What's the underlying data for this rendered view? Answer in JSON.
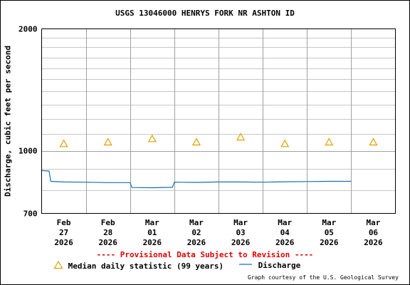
{
  "chart_data": {
    "type": "line",
    "title": "USGS 13046000 HENRYS FORK NR ASHTON ID",
    "xlabel": "",
    "ylabel": "Discharge, cubic feet per second",
    "y_scale": "log",
    "ylim": [
      700,
      2000
    ],
    "yticks": [
      "700",
      "1000",
      "2000"
    ],
    "xlim": [
      "2026-02-27T00:00",
      "2026-03-07T00:00"
    ],
    "x_tick_labels": [
      [
        "Feb",
        "27",
        "2026"
      ],
      [
        "Feb",
        "28",
        "2026"
      ],
      [
        "Mar",
        "01",
        "2026"
      ],
      [
        "Mar",
        "02",
        "2026"
      ],
      [
        "Mar",
        "03",
        "2026"
      ],
      [
        "Mar",
        "04",
        "2026"
      ],
      [
        "Mar",
        "05",
        "2026"
      ],
      [
        "Mar",
        "06",
        "2026"
      ]
    ],
    "grid": true,
    "series": [
      {
        "name": "Discharge",
        "color": "#1a6fb0",
        "points": [
          [
            "2026-02-26T16:00",
            893
          ],
          [
            "2026-02-27T04:00",
            891
          ],
          [
            "2026-02-27T05:00",
            840
          ],
          [
            "2026-02-27T12:00",
            837
          ],
          [
            "2026-02-28T00:00",
            836
          ],
          [
            "2026-02-28T12:00",
            834
          ],
          [
            "2026-03-01T00:00",
            834
          ],
          [
            "2026-03-01T01:00",
            811
          ],
          [
            "2026-03-01T12:00",
            810
          ],
          [
            "2026-03-01T23:00",
            812
          ],
          [
            "2026-03-02T00:00",
            836
          ],
          [
            "2026-03-02T12:00",
            835
          ],
          [
            "2026-03-03T00:00",
            837
          ],
          [
            "2026-03-03T12:00",
            837
          ],
          [
            "2026-03-04T00:00",
            836
          ],
          [
            "2026-03-04T12:00",
            838
          ],
          [
            "2026-03-05T00:00",
            839
          ],
          [
            "2026-03-05T12:00",
            840
          ],
          [
            "2026-03-06T00:00",
            840
          ]
        ]
      },
      {
        "name": "Median daily statistic (99 years)",
        "color": "#e0a000",
        "marker": "triangle",
        "points": [
          [
            "2026-02-27T12:00",
            1040
          ],
          [
            "2026-02-28T12:00",
            1050
          ],
          [
            "2026-03-01T12:00",
            1070
          ],
          [
            "2026-03-02T12:00",
            1050
          ],
          [
            "2026-03-03T12:00",
            1080
          ],
          [
            "2026-03-04T12:00",
            1040
          ],
          [
            "2026-03-05T12:00",
            1050
          ],
          [
            "2026-03-06T12:00",
            1050
          ]
        ]
      }
    ],
    "legend_position": "bottom",
    "annotations": [
      "---- Provisional Data Subject to Revision ----"
    ],
    "credit": "Graph courtesy of the U.S. Geological Survey"
  }
}
